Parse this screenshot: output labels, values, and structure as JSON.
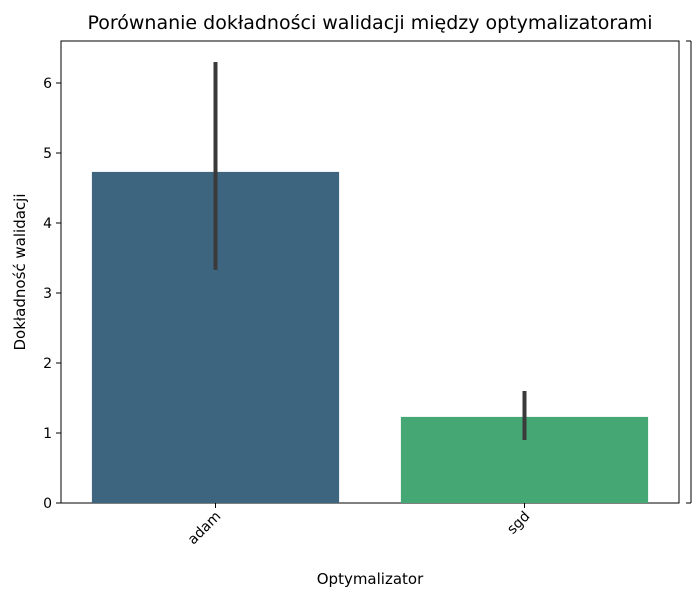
{
  "chart_data": {
    "type": "bar",
    "title": "Porównanie dokładności walidacji między optymalizatorami",
    "xlabel": "Optymalizator",
    "ylabel": "Dokładność walidacji",
    "categories": [
      "adam",
      "sgd"
    ],
    "values": [
      4.73,
      1.23
    ],
    "error_low": [
      3.33,
      0.9
    ],
    "error_high": [
      6.3,
      1.6
    ],
    "colors": [
      "#3e6580",
      "#45a874"
    ],
    "yticks": [
      0,
      1,
      2,
      3,
      4,
      5,
      6
    ],
    "ylim": [
      0,
      6.6
    ],
    "grid": false,
    "legend": "none"
  }
}
